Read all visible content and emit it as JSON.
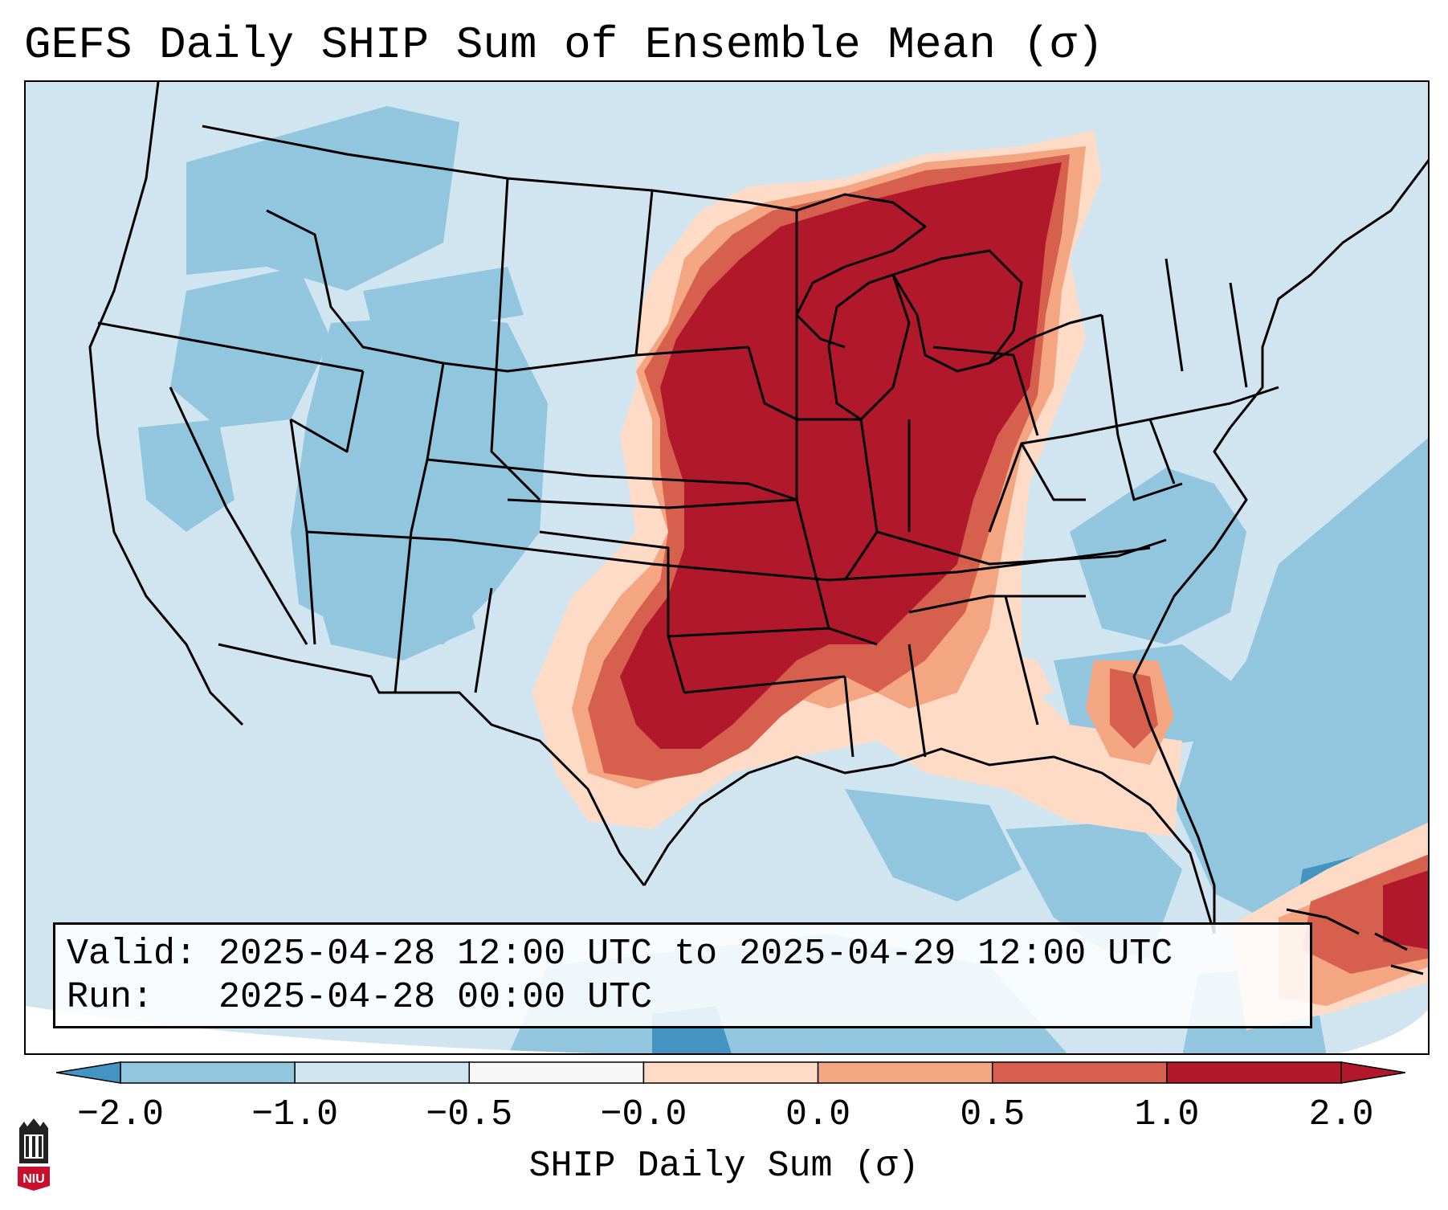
{
  "title": "GEFS Daily SHIP Sum of Ensemble Mean (σ)",
  "info": {
    "valid_label": "Valid:",
    "valid_value": "2025-04-28 12:00 UTC to 2025-04-29 12:00 UTC",
    "run_label": "Run:",
    "run_value": "2025-04-28 00:00 UTC"
  },
  "colorbar": {
    "label": "SHIP Daily Sum (σ)",
    "ticks": [
      "−2.0",
      "−1.0",
      "−0.5",
      "−0.0",
      "0.0",
      "0.5",
      "1.0",
      "2.0"
    ],
    "colors": [
      "#4393c3",
      "#92c5de",
      "#d1e5f0",
      "#f7f7f7",
      "#fddbc7",
      "#f4a582",
      "#d6604d",
      "#b2182b"
    ],
    "extend": "both"
  },
  "map": {
    "region": "Contiguous United States",
    "background_color": "#d1e5f0",
    "outside_domain_color": "#ffffff",
    "border_color": "#000000"
  },
  "logo": {
    "text": "NIU",
    "color": "#c8102e"
  }
}
